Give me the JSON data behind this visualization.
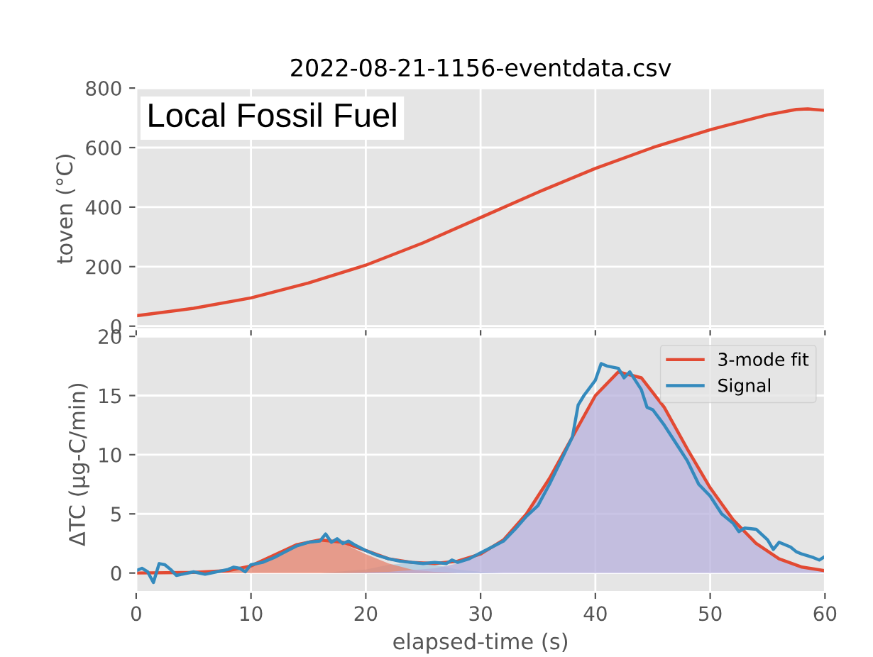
{
  "chart_data": [
    {
      "type": "line",
      "title": "2022-08-21-1156-eventdata.csv",
      "ylabel": "toven (°C)",
      "annotations": [
        "Local Fossil Fuel"
      ],
      "xlim": [
        0,
        60
      ],
      "ylim": [
        -10,
        800
      ],
      "yticks": [
        0,
        200,
        400,
        600,
        800
      ],
      "xticks": [
        0,
        10,
        20,
        30,
        40,
        50,
        60
      ],
      "tick_labels": "y",
      "grid": true,
      "series": [
        {
          "color": "#e24a33",
          "x": [
            0,
            5,
            10,
            15,
            20,
            25,
            30,
            35,
            40,
            45,
            50,
            55,
            57.5,
            58.5,
            60
          ],
          "values": [
            35,
            60,
            95,
            145,
            205,
            280,
            365,
            450,
            530,
            600,
            660,
            710,
            728,
            730,
            725
          ]
        }
      ]
    },
    {
      "type": "line",
      "xlabel": "elapsed-time (s)",
      "ylabel": "ΔTC (μg-C/min)",
      "xlim": [
        0,
        60
      ],
      "ylim": [
        -1.6,
        20
      ],
      "xticks": [
        0,
        10,
        20,
        30,
        40,
        50,
        60
      ],
      "yticks": [
        0,
        5,
        10,
        15,
        20
      ],
      "grid": true,
      "legend": "top right",
      "series": [
        {
          "type": "area",
          "color": "#a9c8dd",
          "x": [
            16,
            20,
            22,
            24,
            26,
            28,
            30,
            32
          ],
          "values": [
            0,
            0.3,
            0.7,
            0.85,
            0.7,
            0.3,
            0.1,
            0
          ]
        },
        {
          "type": "area",
          "color": "#e5826c",
          "x": [
            0,
            8,
            10,
            12,
            14,
            16,
            18,
            20,
            22,
            24,
            26,
            28
          ],
          "values": [
            0,
            0.2,
            0.7,
            1.5,
            2.4,
            2.8,
            2.5,
            1.6,
            0.8,
            0.3,
            0.1,
            0
          ]
        },
        {
          "type": "area",
          "color": "#b7b0dc",
          "x": [
            18,
            22,
            26,
            28,
            30,
            32,
            34,
            36,
            38,
            40,
            42,
            44,
            46,
            48,
            50,
            52,
            54,
            56,
            58,
            60
          ],
          "values": [
            0,
            0.1,
            0.4,
            0.8,
            1.5,
            2.8,
            5,
            8,
            11.5,
            15,
            17,
            16.5,
            14,
            10.5,
            7.2,
            4.5,
            2.5,
            1.2,
            0.5,
            0.2
          ]
        },
        {
          "name": "3-mode fit",
          "color": "#e24a33",
          "x": [
            0,
            5,
            8,
            10,
            12,
            14,
            16,
            18,
            20,
            22,
            24,
            26,
            28,
            30,
            32,
            34,
            36,
            38,
            40,
            42,
            44,
            46,
            48,
            50,
            52,
            54,
            56,
            58,
            60
          ],
          "values": [
            0,
            0.05,
            0.2,
            0.6,
            1.5,
            2.4,
            2.8,
            2.6,
            1.9,
            1.2,
            0.9,
            0.8,
            1.0,
            1.6,
            2.8,
            5.0,
            8.0,
            11.5,
            15.0,
            17.0,
            16.5,
            14.0,
            10.5,
            7.2,
            4.5,
            2.5,
            1.2,
            0.5,
            0.2
          ]
        },
        {
          "name": "Signal",
          "color": "#348abd",
          "x": [
            0,
            0.5,
            1,
            1.5,
            2,
            2.5,
            3,
            3.5,
            4,
            5,
            6,
            7,
            8,
            8.5,
            9,
            9.5,
            10,
            11,
            12,
            13,
            14,
            15,
            16,
            16.5,
            17,
            17.5,
            18,
            18.5,
            19,
            20,
            21,
            22,
            23,
            24,
            25,
            26,
            27,
            27.5,
            28,
            29,
            30,
            31,
            32,
            33,
            34,
            35,
            36,
            37,
            38,
            38.5,
            39,
            40,
            40.5,
            41,
            42,
            42.5,
            43,
            44,
            44.5,
            45,
            46,
            47,
            48,
            49,
            50,
            51,
            52,
            52.5,
            53,
            54,
            55,
            55.5,
            56,
            57,
            57.5,
            58,
            59,
            59.5,
            60
          ],
          "values": [
            0.2,
            0.4,
            0.1,
            -0.8,
            0.8,
            0.7,
            0.3,
            -0.2,
            -0.1,
            0.1,
            -0.1,
            0.1,
            0.3,
            0.5,
            0.4,
            0.1,
            0.7,
            0.9,
            1.3,
            1.8,
            2.3,
            2.6,
            2.7,
            3.3,
            2.6,
            2.9,
            2.5,
            2.7,
            2.4,
            1.9,
            1.5,
            1.2,
            1.0,
            0.9,
            0.8,
            0.9,
            0.8,
            1.1,
            0.9,
            1.2,
            1.7,
            2.2,
            2.7,
            3.7,
            4.8,
            5.7,
            7.5,
            9.5,
            11.5,
            14.2,
            15.0,
            16.3,
            17.7,
            17.5,
            17.3,
            16.5,
            17.0,
            15.5,
            14.0,
            13.8,
            12.5,
            11.0,
            9.5,
            7.5,
            6.5,
            5.0,
            4.2,
            3.5,
            3.8,
            3.7,
            2.8,
            2.0,
            2.6,
            2.2,
            1.8,
            1.6,
            1.3,
            1.1,
            1.4
          ]
        }
      ]
    }
  ]
}
